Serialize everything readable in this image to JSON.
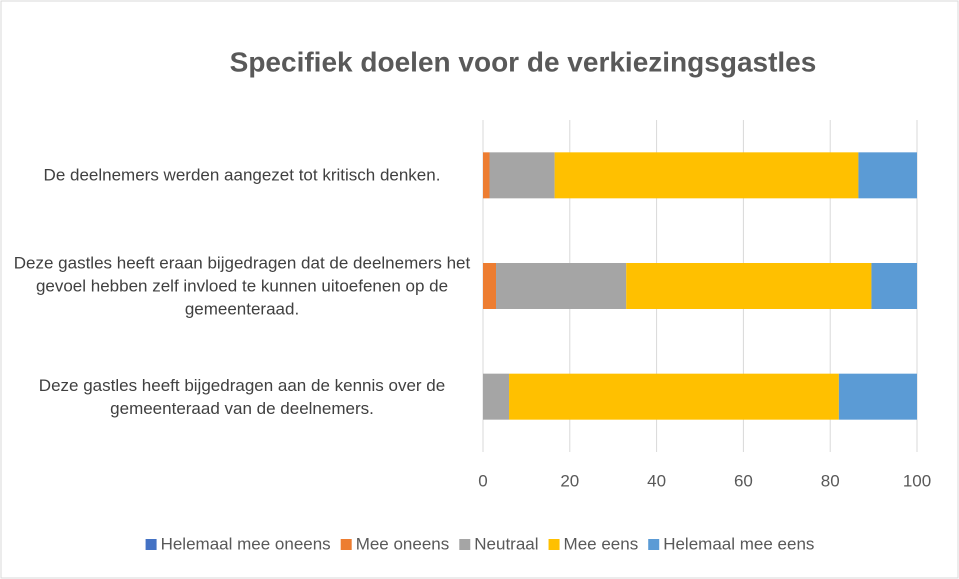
{
  "chart_data": {
    "type": "stacked_barh",
    "title": "Specifiek doelen voor de verkiezingsgastles",
    "categories": [
      "De deelnemers werden aangezet tot kritisch denken.",
      "Deze gastles heeft eraan bijgedragen dat de deelnemers het gevoel hebben zelf invloed te kunnen uitoefenen op de gemeenteraad.",
      "Deze gastles heeft bijgedragen aan de kennis over de gemeenteraad van de deelnemers."
    ],
    "series": [
      {
        "name": "Helemaal mee oneens",
        "color": "#4472c4",
        "values": [
          0,
          0,
          0
        ]
      },
      {
        "name": "Mee oneens",
        "color": "#ed7d31",
        "values": [
          1.5,
          3,
          0
        ]
      },
      {
        "name": "Neutraal",
        "color": "#a5a5a5",
        "values": [
          15,
          30,
          6
        ]
      },
      {
        "name": "Mee eens",
        "color": "#ffc000",
        "values": [
          70,
          56.5,
          76
        ]
      },
      {
        "name": "Helemaal mee eens",
        "color": "#5b9bd5",
        "values": [
          13.5,
          10.5,
          18
        ]
      }
    ],
    "xlim": [
      0,
      100
    ],
    "xticks": [
      0,
      20,
      40,
      60,
      80,
      100
    ],
    "grid": true,
    "legend": "bottom"
  }
}
